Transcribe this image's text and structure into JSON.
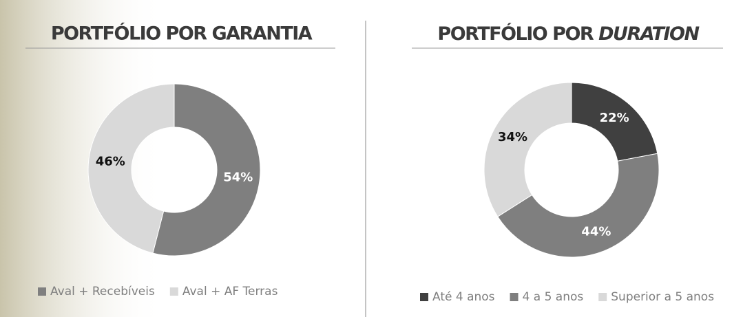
{
  "chart_data": [
    {
      "type": "pie",
      "title": "PORTFÓLIO POR GARANTIA",
      "categories": [
        "Aval + Recebíveis",
        "Aval + AF Terras"
      ],
      "values": [
        54,
        46
      ],
      "value_labels": [
        "54%",
        "46%"
      ],
      "colors": [
        "#7f7f7f",
        "#d9d9d9"
      ]
    },
    {
      "type": "pie",
      "title": "PORTFÓLIO POR",
      "title_emphasis": "DURATION",
      "categories": [
        "Até 4 anos",
        "4 a 5 anos",
        "Superior a 5 anos"
      ],
      "values": [
        22,
        44,
        34
      ],
      "value_labels": [
        "22%",
        "44%",
        "34%"
      ],
      "colors": [
        "#404040",
        "#7f7f7f",
        "#d9d9d9"
      ]
    }
  ]
}
